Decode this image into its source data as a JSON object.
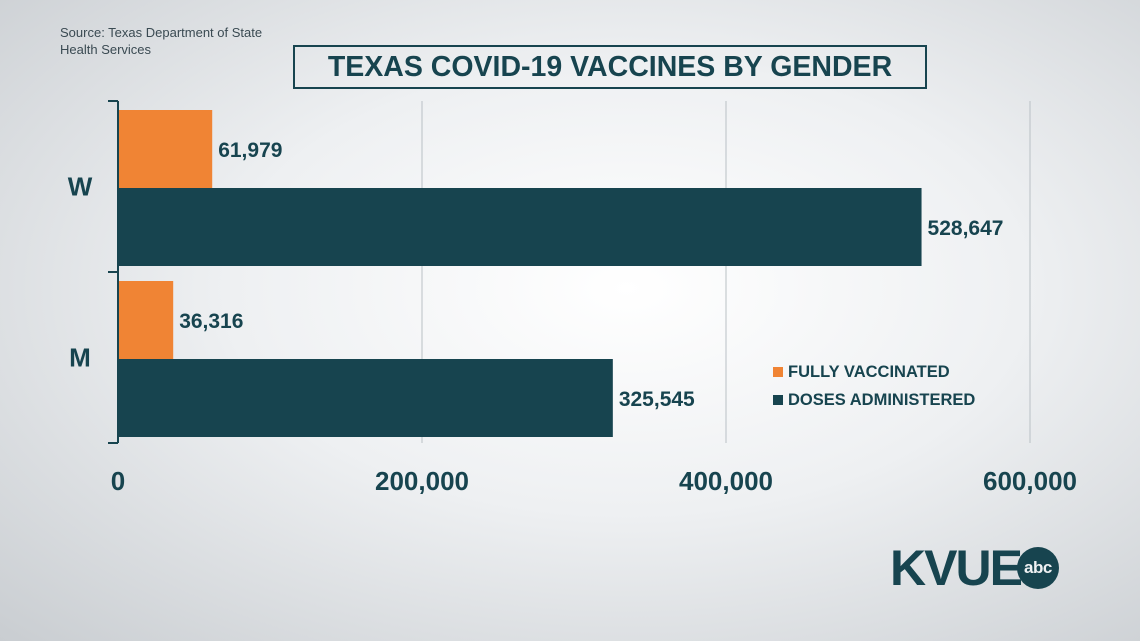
{
  "source": "Source: Texas Department of State Health Services",
  "title": "TEXAS COVID-19 VACCINES BY GENDER",
  "colors": {
    "fully_vaccinated": "#f08434",
    "doses_administered": "#17444f"
  },
  "legend": [
    "FULLY VACCINATED",
    "DOSES ADMINISTERED"
  ],
  "logo": {
    "text": "KVUE",
    "badge": "abc"
  },
  "chart_data": {
    "type": "bar",
    "orientation": "horizontal",
    "title": "TEXAS COVID-19 VACCINES BY GENDER",
    "categories": [
      "W",
      "M"
    ],
    "series": [
      {
        "name": "FULLY VACCINATED",
        "values": [
          61979,
          36316
        ],
        "labels": [
          "61,979",
          "36,316"
        ]
      },
      {
        "name": "DOSES ADMINISTERED",
        "values": [
          528647,
          325545
        ],
        "labels": [
          "528,647",
          "325,545"
        ]
      }
    ],
    "xlim": [
      0,
      600000
    ],
    "xticks": [
      0,
      200000,
      400000,
      600000
    ],
    "xtick_labels": [
      "0",
      "200,000",
      "400,000",
      "600,000"
    ],
    "grid": true,
    "legend_position": "bottom-right"
  }
}
